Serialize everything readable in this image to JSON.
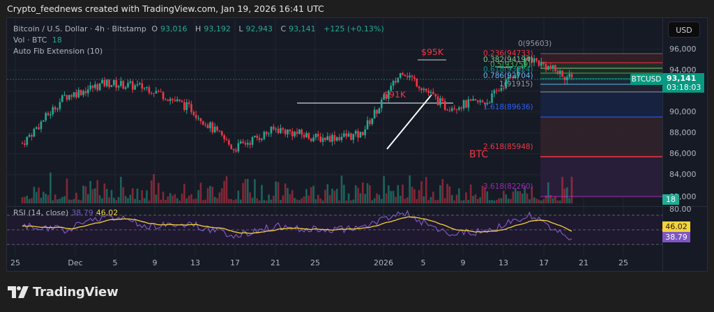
{
  "caption": "Crypto_feednews created with TradingView.com, Jan 19, 2026 16:41 UTC",
  "legend": {
    "symbol": "Bitcoin / U.S. Dollar · 4h · Bitstamp",
    "o_label": "O",
    "o": "93,016",
    "h_label": "H",
    "h": "93,192",
    "l_label": "L",
    "l": "92,943",
    "c_label": "C",
    "c": "93,141",
    "change": "+125 (+0.13%)",
    "vol_label": "Vol · BTC",
    "vol": "18",
    "indicator": "Auto Fib Extension (10)"
  },
  "currency_button": "USD",
  "price_axis": [
    "96,000",
    "94,000",
    "90,000",
    "88,000",
    "86,000",
    "84,000",
    "82,000"
  ],
  "last_price": {
    "symbol": "BTCUSD",
    "price": "93,141",
    "countdown": "03:18:03",
    "volume": "18"
  },
  "annotations": {
    "high": "$95K",
    "support": "$91K",
    "watermark": "BTC"
  },
  "fib_levels": [
    {
      "label": "0(95603)",
      "color": "#9598a1"
    },
    {
      "label": "0.236(94733)",
      "color": "#f23645"
    },
    {
      "label": "0.382(94194)",
      "color": "#81c784"
    },
    {
      "label": "0.5(93759)",
      "color": "#4caf50"
    },
    {
      "label": "0.618(93324)",
      "color": "#089981"
    },
    {
      "label": "0.786(92704)",
      "color": "#64b5f6"
    },
    {
      "label": "1(91915)",
      "color": "#9598a1"
    },
    {
      "label": "1.618(89636)",
      "color": "#2962ff"
    },
    {
      "label": "2.618(85948)",
      "color": "#f23645"
    },
    {
      "label": "3.618(82260)",
      "color": "#9c27b0"
    }
  ],
  "rsi": {
    "label": "RSI (14, close)",
    "value": "38.79",
    "ma": "46.02",
    "axis_top": "80.00"
  },
  "x_axis": [
    "25",
    "Dec",
    "5",
    "9",
    "13",
    "17",
    "21",
    "25",
    "2026",
    "5",
    "9",
    "13",
    "17",
    "21",
    "25"
  ],
  "brand": "TradingView",
  "colors": {
    "up": "#22ab94",
    "down": "#f23645",
    "rsi": "#7e57c2",
    "rsi_ma": "#f7d23a",
    "bg": "#161a25"
  },
  "chart_data": {
    "type": "line",
    "title": "Bitcoin / U.S. Dollar · 4h · Bitstamp",
    "x": [
      "Nov 25",
      "Dec 1",
      "Dec 5",
      "Dec 9",
      "Dec 13",
      "Dec 17",
      "Dec 21",
      "Dec 25",
      "Jan 1",
      "Jan 5",
      "Jan 9",
      "Jan 13",
      "Jan 17",
      "Jan 19"
    ],
    "series": [
      {
        "name": "BTCUSD close (approx)",
        "values": [
          87000,
          91500,
          92800,
          92300,
          90300,
          86500,
          88400,
          87500,
          87800,
          94000,
          90500,
          91000,
          95200,
          93141
        ]
      },
      {
        "name": "RSI (14)",
        "values": [
          55,
          50,
          70,
          55,
          58,
          42,
          55,
          50,
          52,
          75,
          45,
          48,
          70,
          38.79
        ]
      }
    ],
    "ohlc_last": {
      "open": 93016,
      "high": 93192,
      "low": 92943,
      "close": 93141,
      "change": 125,
      "change_pct": 0.13
    },
    "fib_extension": {
      "0": 95603,
      "0.236": 94733,
      "0.382": 94194,
      "0.5": 93759,
      "0.618": 93324,
      "0.786": 92704,
      "1": 91915,
      "1.618": 89636,
      "2.618": 85948,
      "3.618": 82260
    },
    "ylabel": "USD",
    "ylim": [
      81000,
      98000
    ],
    "rsi_levels": [
      70,
      50,
      30
    ],
    "rsi_ma_last": 46.02,
    "annotations": [
      "$95K",
      "$91K",
      "BTC"
    ]
  }
}
